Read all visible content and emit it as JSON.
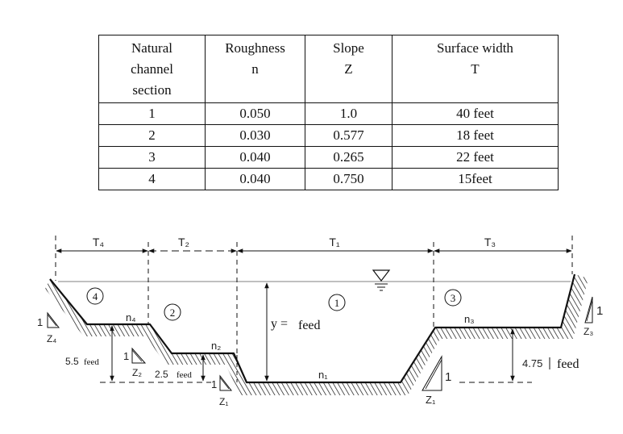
{
  "table": {
    "headers": [
      "Natural\nchannel\nsection",
      "Roughness\nn",
      "Slope\nZ",
      "Surface width\nT"
    ],
    "rows": [
      [
        "1",
        "0.050",
        "1.0",
        "40 feet"
      ],
      [
        "2",
        "0.030",
        "0.577",
        "18 feet"
      ],
      [
        "3",
        "0.040",
        "0.265",
        "22 feet"
      ],
      [
        "4",
        "0.040",
        "0.750",
        "15feet"
      ]
    ]
  },
  "diagram": {
    "widths": {
      "t4": "T₄",
      "t2": "T₂",
      "t1": "T₁",
      "t3": "T₃"
    },
    "sections": {
      "s1": "1",
      "s2": "2",
      "s3": "3",
      "s4": "4"
    },
    "roughness": {
      "n1": "n₁",
      "n2": "n₂",
      "n3": "n₃",
      "n4": "n₄"
    },
    "slopes": {
      "one": "1",
      "z1": "Z₁",
      "z2": "Z₂",
      "z3": "Z₃",
      "z4": "Z₄"
    },
    "depths": {
      "y": "y =",
      "y_unit": "feed",
      "d55": "5.5",
      "d55_unit": "feed",
      "d25": "2.5",
      "d25_unit": "feed",
      "d475": "4.75",
      "d475_unit": "feed"
    }
  }
}
